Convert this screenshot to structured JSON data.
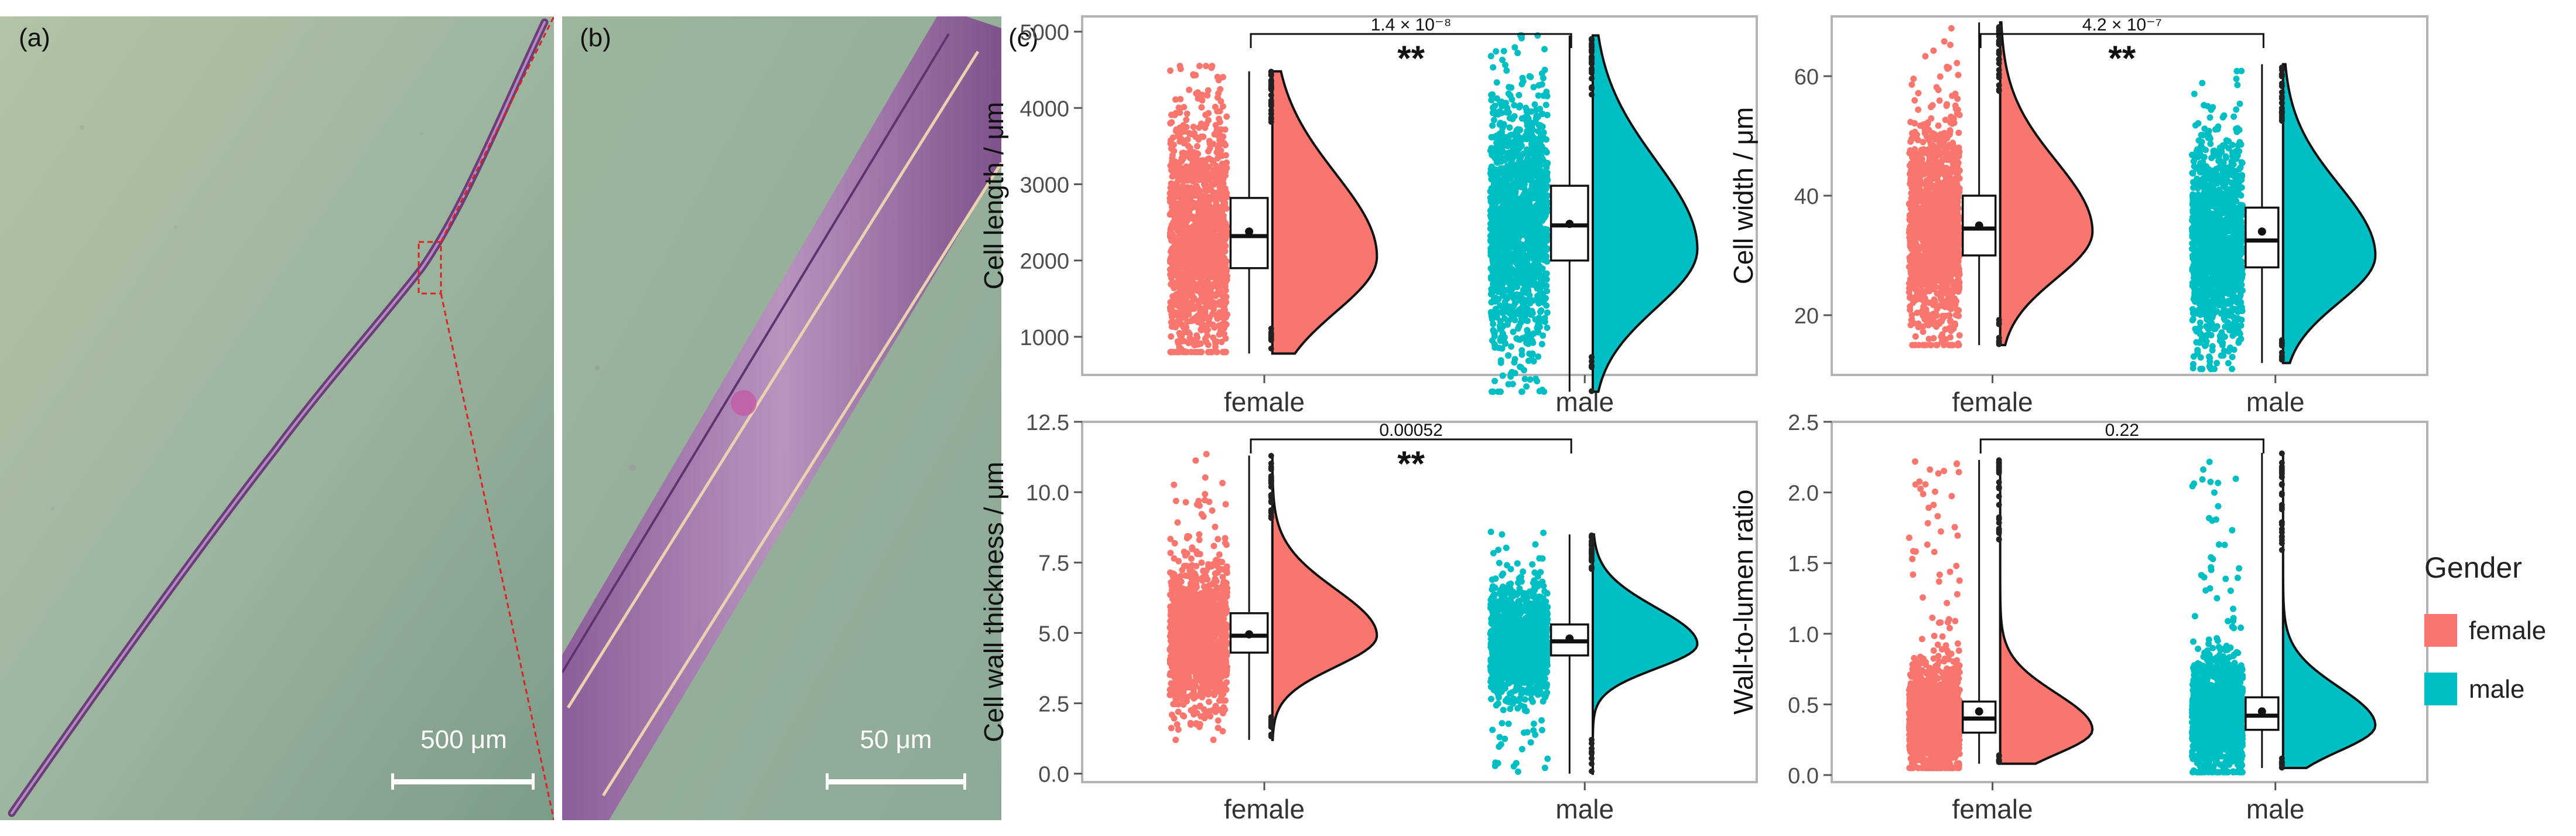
{
  "panel_labels": {
    "a": "(a)",
    "b": "(b)",
    "c": "(c)"
  },
  "micrographs": {
    "a": {
      "scale_bar_label": "500 μm"
    },
    "b": {
      "scale_bar_label": "50 μm"
    }
  },
  "legend": {
    "title": "Gender",
    "items": [
      {
        "label": "female",
        "color": "#F8766D"
      },
      {
        "label": "male",
        "color": "#00BFC4"
      }
    ]
  },
  "chart_data": [
    {
      "type": "raincloud",
      "ylabel": "Cell length / μm",
      "ylim": [
        500,
        5200
      ],
      "yticks": [
        1000,
        2000,
        3000,
        4000,
        5000
      ],
      "categories": [
        "female",
        "male"
      ],
      "colors": [
        "#F8766D",
        "#00BFC4"
      ],
      "groups": [
        {
          "name": "female",
          "median": 2320,
          "mean": 2380,
          "q1": 1900,
          "q3": 2820,
          "whisker_low": 780,
          "whisker_high": 4480,
          "jitter_range": [
            800,
            4550
          ],
          "density_mode": 2050
        },
        {
          "name": "male",
          "median": 2460,
          "mean": 2480,
          "q1": 2000,
          "q3": 2980,
          "whisker_low": 280,
          "whisker_high": 4950,
          "jitter_range": [
            280,
            4950
          ],
          "density_mode": 2150
        }
      ],
      "comparison": {
        "p_value": "1.4 × 10⁻⁸",
        "stars": "**"
      }
    },
    {
      "type": "raincloud",
      "ylabel": "Cell width / μm",
      "ylim": [
        10,
        70
      ],
      "yticks": [
        20,
        40,
        60
      ],
      "categories": [
        "female",
        "male"
      ],
      "colors": [
        "#F8766D",
        "#00BFC4"
      ],
      "groups": [
        {
          "name": "female",
          "median": 34.5,
          "mean": 35,
          "q1": 30,
          "q3": 40,
          "whisker_low": 15,
          "whisker_high": 69,
          "jitter_range": [
            15,
            68
          ],
          "density_mode": 34
        },
        {
          "name": "male",
          "median": 32.5,
          "mean": 34,
          "q1": 28,
          "q3": 38,
          "whisker_low": 12,
          "whisker_high": 62,
          "jitter_range": [
            11,
            62
          ],
          "density_mode": 30
        }
      ],
      "comparison": {
        "p_value": "4.2 × 10⁻⁷",
        "stars": "**"
      }
    },
    {
      "type": "raincloud",
      "ylabel": "Cell wall thickness / μm",
      "ylim": [
        -0.3,
        12.5
      ],
      "yticks": [
        0.0,
        2.5,
        5.0,
        7.5,
        10.0,
        12.5
      ],
      "ytick_labels": [
        "0.0",
        "2.5",
        "5.0",
        "7.5",
        "10.0",
        "12.5"
      ],
      "categories": [
        "female",
        "male"
      ],
      "colors": [
        "#F8766D",
        "#00BFC4"
      ],
      "groups": [
        {
          "name": "female",
          "median": 4.9,
          "mean": 4.95,
          "q1": 4.3,
          "q3": 5.7,
          "whisker_low": 1.2,
          "whisker_high": 11.3,
          "jitter_range": [
            1.2,
            11.4
          ],
          "density_mode": 4.9
        },
        {
          "name": "male",
          "median": 4.7,
          "mean": 4.8,
          "q1": 4.2,
          "q3": 5.3,
          "whisker_low": 0.0,
          "whisker_high": 8.5,
          "jitter_range": [
            0.0,
            8.6
          ],
          "density_mode": 4.6
        }
      ],
      "comparison": {
        "p_value": "0.00052",
        "stars": "**"
      }
    },
    {
      "type": "raincloud",
      "ylabel": "Wall-to-lumen ratio",
      "ylim": [
        -0.05,
        2.5
      ],
      "yticks": [
        0.0,
        0.5,
        1.0,
        1.5,
        2.0,
        2.5
      ],
      "ytick_labels": [
        "0.0",
        "0.5",
        "1.0",
        "1.5",
        "2.0",
        "2.5"
      ],
      "categories": [
        "female",
        "male"
      ],
      "colors": [
        "#F8766D",
        "#00BFC4"
      ],
      "groups": [
        {
          "name": "female",
          "median": 0.4,
          "mean": 0.45,
          "q1": 0.3,
          "q3": 0.52,
          "whisker_low": 0.08,
          "whisker_high": 2.23,
          "jitter_range": [
            0.05,
            2.23
          ],
          "density_mode": 0.32
        },
        {
          "name": "male",
          "median": 0.42,
          "mean": 0.45,
          "q1": 0.32,
          "q3": 0.55,
          "whisker_low": 0.05,
          "whisker_high": 2.28,
          "jitter_range": [
            0.02,
            2.28
          ],
          "density_mode": 0.35
        }
      ],
      "comparison": {
        "p_value": "0.22",
        "stars": ""
      }
    }
  ]
}
